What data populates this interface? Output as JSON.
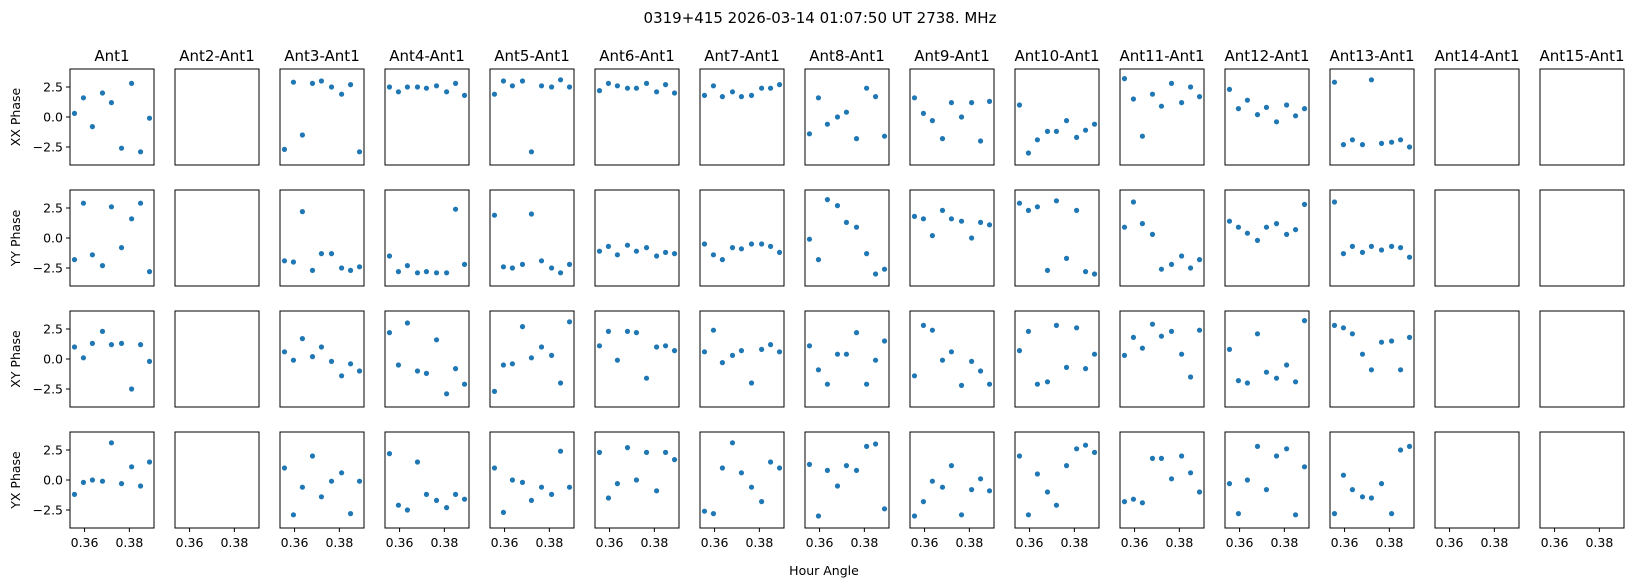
{
  "chart_data": {
    "type": "scatter",
    "title": "0319+415  2026-03-14 01:07:50 UT  2738. MHz",
    "columns": [
      "Ant1",
      "Ant2-Ant1",
      "Ant3-Ant1",
      "Ant4-Ant1",
      "Ant5-Ant1",
      "Ant6-Ant1",
      "Ant7-Ant1",
      "Ant8-Ant1",
      "Ant9-Ant1",
      "Ant10-Ant1",
      "Ant11-Ant1",
      "Ant12-Ant1",
      "Ant13-Ant1",
      "Ant14-Ant1",
      "Ant15-Ant1"
    ],
    "rows": [
      "XX Phase",
      "YY Phase",
      "XY Phase",
      "YX Phase"
    ],
    "xlabel": "Hour Angle",
    "xlim": [
      0.3535,
      0.391
    ],
    "ylim": [
      -4.0,
      4.0
    ],
    "xticks": [
      0.36,
      0.38
    ],
    "xtick_labels": [
      "0.36",
      "0.38"
    ],
    "yticks": [
      2.5,
      0.0,
      -2.5
    ],
    "ytick_labels": [
      "2.5",
      "0.0",
      "−2.5"
    ],
    "x": [
      0.3555,
      0.3595,
      0.3635,
      0.368,
      0.372,
      0.3765,
      0.381,
      0.385,
      0.389
    ],
    "marker_color": "#1f77b4",
    "panels": [
      [
        [
          0.3,
          1.6,
          -0.8,
          2.0,
          1.2,
          -2.6,
          2.8,
          -2.9,
          -0.1
        ],
        null,
        [
          -2.7,
          2.9,
          -1.5,
          2.8,
          3.0,
          2.5,
          1.9,
          2.7,
          -2.9
        ],
        [
          2.5,
          2.1,
          2.5,
          2.5,
          2.4,
          2.6,
          2.1,
          2.8,
          1.8
        ],
        [
          1.9,
          3.0,
          2.6,
          3.0,
          -2.9,
          2.6,
          2.5,
          3.1,
          2.5
        ],
        [
          2.2,
          2.8,
          2.6,
          2.4,
          2.4,
          2.8,
          2.1,
          2.7,
          2.0
        ],
        [
          1.8,
          2.6,
          1.7,
          2.1,
          1.7,
          1.8,
          2.4,
          2.4,
          2.7
        ],
        [
          -1.4,
          1.6,
          -0.6,
          0.0,
          0.4,
          -1.8,
          2.4,
          1.7,
          -1.6
        ],
        [
          1.6,
          0.3,
          -0.3,
          -1.8,
          1.2,
          0.0,
          1.2,
          -2.0,
          1.3
        ],
        [
          1.0,
          -3.0,
          -1.9,
          -1.2,
          -1.2,
          -0.3,
          -1.7,
          -1.1,
          -0.6
        ],
        [
          3.2,
          1.5,
          -1.6,
          1.9,
          0.9,
          2.8,
          1.2,
          2.5,
          1.7
        ],
        [
          2.3,
          0.7,
          1.4,
          0.2,
          0.8,
          -0.4,
          1.0,
          0.1,
          0.7
        ],
        [
          2.9,
          -2.3,
          -1.9,
          -2.3,
          3.1,
          -2.2,
          -2.1,
          -1.9,
          -2.5
        ],
        null,
        null
      ],
      [
        [
          -1.8,
          2.9,
          -1.4,
          -2.3,
          2.6,
          -0.8,
          1.6,
          2.9,
          -2.8
        ],
        null,
        [
          -1.9,
          -2.0,
          2.2,
          -2.7,
          -1.3,
          -1.3,
          -2.5,
          -2.7,
          -2.4
        ],
        [
          -1.5,
          -2.8,
          -2.3,
          -2.9,
          -2.8,
          -2.9,
          -2.9,
          2.4,
          -2.2
        ],
        [
          1.9,
          -2.4,
          -2.5,
          -2.2,
          2.0,
          -1.9,
          -2.5,
          -2.9,
          -2.2
        ],
        [
          -1.1,
          -0.7,
          -1.4,
          -0.6,
          -1.1,
          -0.8,
          -1.5,
          -1.2,
          -1.3
        ],
        [
          -0.5,
          -1.4,
          -1.8,
          -0.8,
          -0.9,
          -0.5,
          -0.5,
          -0.7,
          -1.2
        ],
        [
          -0.1,
          -1.8,
          3.2,
          2.7,
          1.3,
          0.9,
          -1.3,
          -3.0,
          -2.6
        ],
        [
          1.8,
          1.6,
          0.2,
          2.3,
          1.6,
          1.4,
          0.0,
          1.3,
          1.1
        ],
        [
          2.9,
          2.3,
          2.6,
          -2.7,
          3.1,
          -1.7,
          2.3,
          -2.8,
          -3.0
        ],
        [
          0.9,
          3.0,
          1.2,
          0.3,
          -2.6,
          -2.2,
          -1.5,
          -2.5,
          -1.8
        ],
        [
          1.4,
          0.9,
          0.4,
          -0.2,
          0.9,
          1.2,
          0.3,
          0.7,
          2.8
        ],
        [
          3.0,
          -1.3,
          -0.7,
          -1.2,
          -0.7,
          -1.0,
          -0.7,
          -0.8,
          -1.6
        ],
        null,
        null
      ],
      [
        [
          1.0,
          0.1,
          1.3,
          2.3,
          1.2,
          1.3,
          -2.5,
          1.2,
          -0.2
        ],
        null,
        [
          0.6,
          -0.1,
          1.7,
          0.2,
          1.0,
          -0.2,
          -1.4,
          -0.4,
          -1.0
        ],
        [
          2.2,
          -0.5,
          3.0,
          -1.0,
          -1.2,
          1.6,
          -2.9,
          -0.8,
          -2.1
        ],
        [
          -2.7,
          -0.5,
          -0.4,
          2.7,
          0.1,
          1.0,
          0.3,
          -2.0,
          3.1
        ],
        [
          1.1,
          2.3,
          -0.1,
          2.3,
          2.2,
          -1.6,
          1.0,
          1.1,
          0.7
        ],
        [
          0.6,
          2.4,
          -0.3,
          0.3,
          0.7,
          -2.0,
          0.8,
          1.2,
          0.6
        ],
        [
          1.1,
          -0.9,
          -2.1,
          0.4,
          0.4,
          2.2,
          -2.1,
          -0.1,
          1.5
        ],
        [
          -1.4,
          2.8,
          2.4,
          -0.1,
          0.6,
          -2.2,
          -0.2,
          -1.0,
          -2.1
        ],
        [
          0.7,
          2.3,
          -2.1,
          -1.9,
          2.8,
          -0.7,
          2.6,
          -0.8,
          0.4
        ],
        [
          0.3,
          1.8,
          0.9,
          2.9,
          1.9,
          2.3,
          0.4,
          -1.5,
          2.4
        ],
        [
          0.8,
          -1.8,
          -2.0,
          2.1,
          -1.1,
          -1.6,
          -0.5,
          -1.9,
          3.2
        ],
        [
          2.8,
          2.6,
          2.1,
          0.4,
          -0.9,
          1.4,
          1.5,
          -0.9,
          1.8
        ],
        null,
        null
      ],
      [
        [
          -1.2,
          -0.2,
          0.0,
          -0.1,
          3.1,
          -0.3,
          1.1,
          -0.5,
          1.5
        ],
        null,
        [
          1.0,
          -2.9,
          -0.6,
          2.0,
          -1.4,
          -0.1,
          0.6,
          -2.8,
          -0.1
        ],
        [
          2.2,
          -2.1,
          -2.5,
          1.5,
          -1.2,
          -1.7,
          -2.3,
          -1.2,
          -1.6
        ],
        [
          1.0,
          -2.7,
          0.0,
          -0.2,
          -1.7,
          -0.6,
          -1.2,
          2.4,
          -0.6
        ],
        [
          2.3,
          -1.5,
          -0.3,
          2.7,
          0.0,
          2.3,
          -0.9,
          2.3,
          1.7
        ],
        [
          -2.6,
          -2.8,
          1.0,
          3.1,
          0.6,
          -0.6,
          -1.8,
          1.5,
          1.0
        ],
        [
          1.3,
          -3.0,
          0.8,
          -0.5,
          1.2,
          0.8,
          2.8,
          3.0,
          -2.4
        ],
        [
          -3.0,
          -1.8,
          -0.1,
          -0.6,
          1.2,
          -2.9,
          -0.8,
          0.1,
          -0.9
        ],
        [
          2.0,
          -2.9,
          0.5,
          -1.0,
          -2.1,
          1.2,
          2.6,
          2.9,
          2.3
        ],
        [
          -1.8,
          -1.6,
          -1.9,
          1.8,
          1.8,
          0.1,
          2.0,
          0.6,
          -1.0
        ],
        [
          -0.3,
          -2.8,
          0.0,
          2.8,
          -0.8,
          2.0,
          2.6,
          -2.9,
          1.1
        ],
        [
          -2.8,
          0.4,
          -0.8,
          -1.4,
          -1.5,
          -0.3,
          -2.8,
          2.5,
          2.8
        ],
        null,
        null
      ]
    ]
  }
}
